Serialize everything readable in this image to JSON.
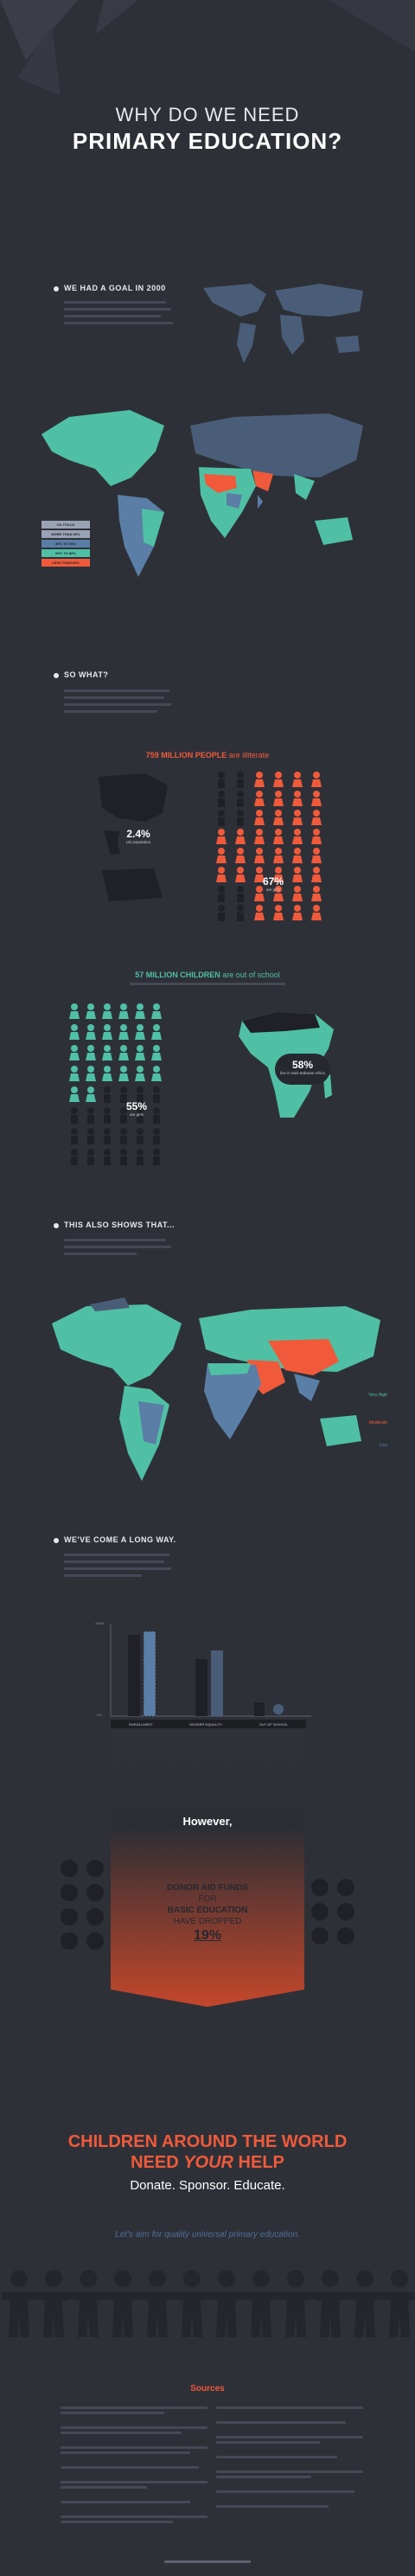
{
  "hero": {
    "line1": "WHY DO WE NEED",
    "line2": "PRIMARY EDUCATION?"
  },
  "goal": {
    "heading": "WE HAD A GOAL IN 2000",
    "legend": [
      "ON TRACK",
      "MORE THAN 90%",
      "80% TO 90%",
      "60% TO 80%",
      "LESS THAN 60%"
    ],
    "legend_colors": [
      "#2e3038",
      "#9aa3b5",
      "#5a7ea6",
      "#4fc0a4",
      "#f05a3a"
    ]
  },
  "sowhat": {
    "heading": "SO WHAT?"
  },
  "illiterate": {
    "headline_bold": "759 MILLION PEOPLE",
    "headline_rest": "are illiterate",
    "pct_us": "2.4",
    "pct_us_label": "US population",
    "pct_girls": "67",
    "pct_girls_label": "are girls"
  },
  "out_of_school": {
    "headline_bold": "57 MILLION CHILDREN",
    "headline_rest": "are out of school",
    "pct_girls": "55",
    "pct_girls_label": "are girls",
    "pct_africa": "58",
    "pct_africa_label": "live in Sub-Saharan Africa"
  },
  "shows": {
    "heading": "THIS ALSO SHOWS THAT...",
    "labels": [
      "Very High",
      "Moderate",
      "Low"
    ]
  },
  "longway": {
    "heading": "WE'VE COME A LONG WAY.",
    "axis_top": "100%",
    "axis_bottom": "0%",
    "cats": [
      "ENROLLMENT",
      "GENDER EQUALITY",
      "OUT OF SCHOOL"
    ]
  },
  "however": "However,",
  "donor": {
    "l1": "DONOR AID FUNDS",
    "l2": "FOR",
    "l3": "BASIC EDUCATION",
    "l4": "HAVE DROPPED",
    "l5": "19%"
  },
  "cta": {
    "line1": "CHILDREN AROUND THE WORLD",
    "line2a": "NEED ",
    "line2b": "YOUR",
    "line2c": " HELP",
    "line3": "Donate. Sponsor. Educate.",
    "tagline": "Let's aim for quality universal primary education."
  },
  "sources": {
    "title": "Sources"
  },
  "colors": {
    "bg": "#2e3038",
    "orange": "#f05a3a",
    "teal": "#4fc0a4",
    "blue": "#5a7ea6",
    "steel": "#4a5d78"
  }
}
